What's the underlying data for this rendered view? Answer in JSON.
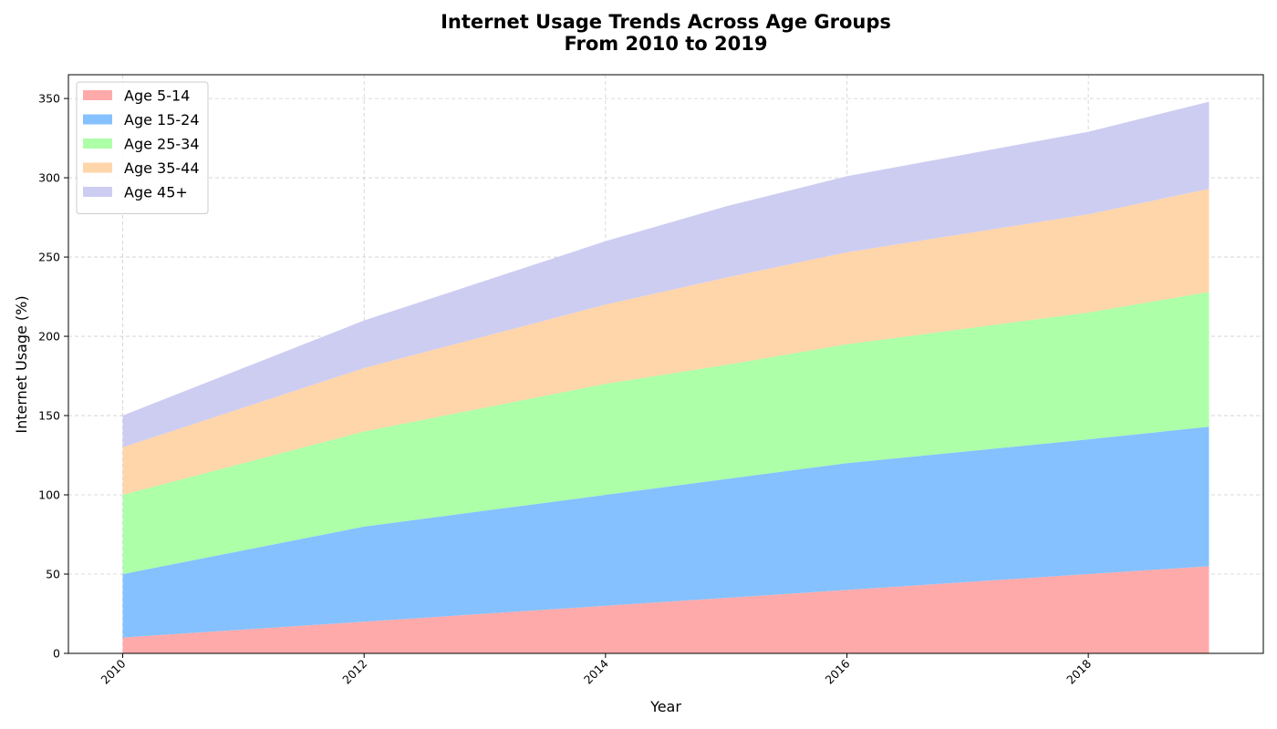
{
  "chart_data": {
    "type": "area",
    "stacked": true,
    "title": "Internet Usage Trends Across Age Groups",
    "subtitle": "From 2010 to 2019",
    "xlabel": "Year",
    "ylabel": "Internet Usage (%)",
    "xlim": [
      2009.55,
      2019.45
    ],
    "ylim": [
      0,
      365
    ],
    "x_ticks": [
      2010,
      2012,
      2014,
      2016,
      2018
    ],
    "y_ticks": [
      0,
      50,
      100,
      150,
      200,
      250,
      300,
      350
    ],
    "grid": true,
    "legend_position": "top-left",
    "x": [
      2010,
      2012,
      2014,
      2015,
      2016,
      2018,
      2019
    ],
    "series": [
      {
        "name": "Age 5-14",
        "color": "#ffaaaa",
        "values": [
          10,
          20,
          30,
          35,
          40,
          50,
          55
        ]
      },
      {
        "name": "Age 15-24",
        "color": "#85c1ff",
        "values": [
          40,
          60,
          70,
          75,
          80,
          85,
          88
        ]
      },
      {
        "name": "Age 25-34",
        "color": "#adffa8",
        "values": [
          50,
          60,
          70,
          72,
          75,
          80,
          85
        ]
      },
      {
        "name": "Age 35-44",
        "color": "#ffd5aa",
        "values": [
          30,
          40,
          50,
          55,
          58,
          62,
          65
        ]
      },
      {
        "name": "Age 45+",
        "color": "#cdcdf2",
        "values": [
          20,
          30,
          40,
          45,
          48,
          52,
          55
        ]
      }
    ]
  }
}
